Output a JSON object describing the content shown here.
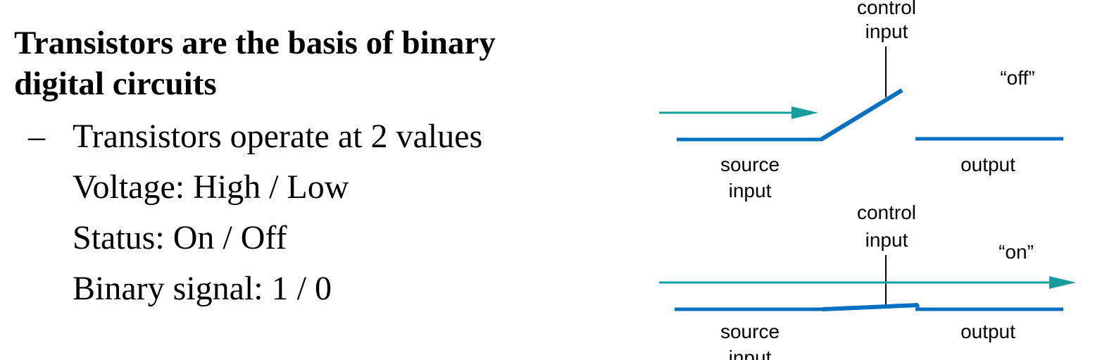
{
  "slide": {
    "heading_line1": "Transistors are the basis of binary",
    "heading_line2": "digital circuits",
    "bullet_dash": "–",
    "bullet_lines": [
      "Transistors operate at 2 values",
      "Voltage: High / Low",
      "Status: On / Off",
      "Binary signal: 1 / 0"
    ]
  },
  "diagram": {
    "colors": {
      "wire": "#0070c0",
      "signal": "#169c9c",
      "control": "#000000"
    },
    "off_switch": {
      "control_label_line1": "control",
      "control_label_line2": "input",
      "state_label": "“off”",
      "source_label_line1": "source",
      "source_label_line2": "input",
      "output_label": "output"
    },
    "on_switch": {
      "control_label_line1": "control",
      "control_label_line2": "input",
      "state_label": "“on”",
      "source_label_line1": "source",
      "source_label_line2": "input",
      "output_label": "output"
    }
  }
}
